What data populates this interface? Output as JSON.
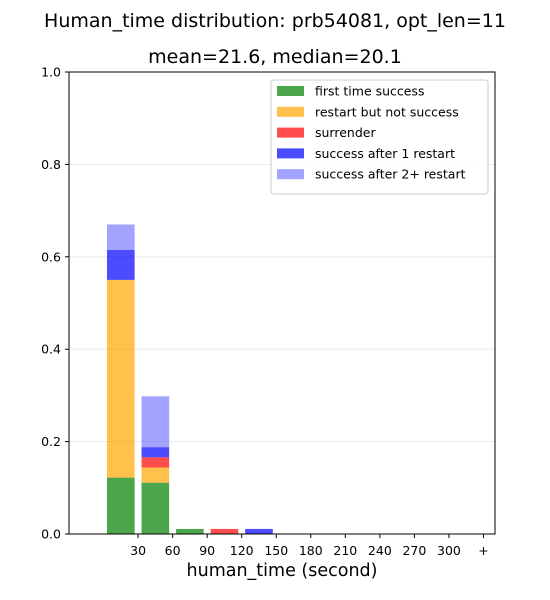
{
  "chart_data": {
    "type": "bar",
    "title": "Human_time distribution: prb54081, opt_len=11",
    "subtitle": "mean=21.6, median=20.1",
    "xlabel": "human_time (second)",
    "ylabel": "",
    "ylim": [
      0,
      1.0
    ],
    "yticks": [
      "0.0",
      "0.2",
      "0.4",
      "0.6",
      "0.8",
      "1.0"
    ],
    "xticks": [
      "30",
      "60",
      "90",
      "120",
      "150",
      "180",
      "210",
      "240",
      "270",
      "300",
      "+"
    ],
    "grid": "horizontal",
    "legend_position": "top-right",
    "bins": [
      15,
      45,
      75,
      105,
      135
    ],
    "series": [
      {
        "name": "first time success",
        "color": "#008000",
        "values": [
          0.122,
          0.111,
          0.011,
          0,
          0
        ]
      },
      {
        "name": "restart but not success",
        "color": "#FFA500",
        "values": [
          0.428,
          0.033,
          0,
          0,
          0
        ]
      },
      {
        "name": "surrender",
        "color": "#FF0000",
        "values": [
          0,
          0.022,
          0,
          0.011,
          0
        ]
      },
      {
        "name": "success after 1 restart",
        "color": "#0000FF",
        "values": [
          0.065,
          0.022,
          0,
          0,
          0.011
        ]
      },
      {
        "name": "success after 2+ restart",
        "color": "#7B7BFF",
        "values": [
          0.055,
          0.11,
          0,
          0,
          0
        ]
      }
    ]
  }
}
